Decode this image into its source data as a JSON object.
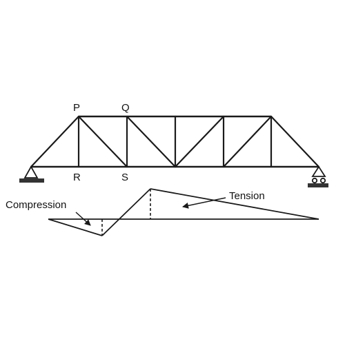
{
  "truss": {
    "nodes": {
      "p": "P",
      "q": "Q",
      "r": "R",
      "s": "S"
    }
  },
  "influence_line": {
    "compression_label": "Compression",
    "tension_label": "Tension"
  }
}
